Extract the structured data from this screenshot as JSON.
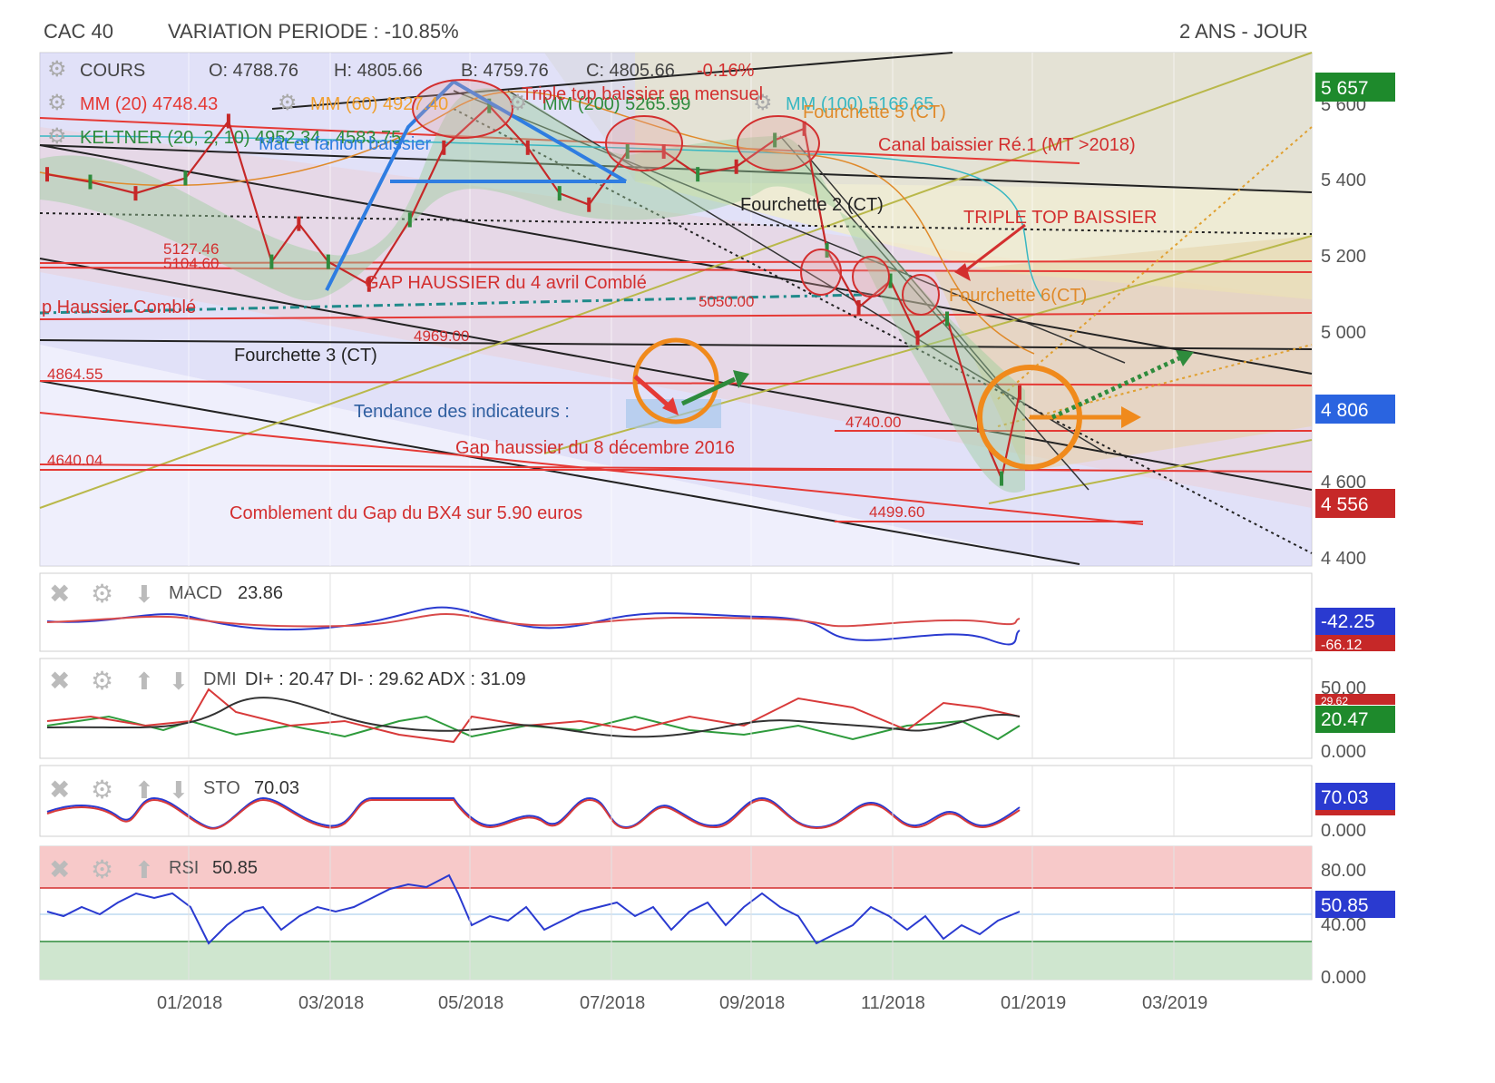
{
  "header": {
    "index": "CAC 40",
    "variation": "VARIATION PERIODE : -10.85%",
    "period": "2 ANS - JOUR"
  },
  "main_panel": {
    "legend": {
      "cours_label": "COURS",
      "o": "O: 4788.76",
      "h": "H: 4805.66",
      "b": "B: 4759.76",
      "c": "C: 4805.66",
      "change": "-0.16%",
      "mm20": "MM (20) 4748.43",
      "mm60": "MM (60) 4927.40",
      "mm200": "MM (200) 5265.99",
      "mm100": "MM (100) 5166.65",
      "keltner": "KELTNER (20, 2, 10) 4952.34 , 4583.75"
    },
    "annotations": {
      "triple_top_mensuel": "Triple top baissier en mensuel",
      "mat_fanion": "Mât et fanion baissier",
      "fourchette5": "Fourchette 5 (CT)",
      "canal_baissier": "Canal baissier Ré.1 (MT >2018)",
      "fourchette2": "Fourchette 2 (CT)",
      "triple_top": "TRIPLE TOP BAISSIER",
      "gap_haussier_avril": "GAP HAUSSIER du 4 avril Comblé",
      "gap_haussier_comble": "p Haussier Comblé",
      "fourchette6": "Fourchette 6(CT)",
      "fourchette3": "Fourchette 3 (CT)",
      "tendance": "Tendance des indicateurs :",
      "gap_decembre": "Gap haussier du 8 décembre 2016",
      "comblement": "Comblement du Gap du BX4 sur 5.90 euros",
      "lvl_5127": "5127.46",
      "lvl_5104": "5104.60",
      "lvl_5050": "5050.00",
      "lvl_4969": "4969.00",
      "lvl_4864": "4864.55",
      "lvl_4740": "4740.00",
      "lvl_4640": "4640.04",
      "lvl_4499": "4499.60"
    },
    "badges": {
      "top": "5 657",
      "current": "4 806",
      "bottom": "4 556"
    }
  },
  "indicators": {
    "macd": {
      "label": "MACD",
      "value": "23.86",
      "badge1": "-42.25",
      "badge2": "-66.12"
    },
    "dmi": {
      "label": "DMI",
      "value": "DI+ : 20.47 DI- : 29.62 ADX : 31.09",
      "badge1": "29.62",
      "badge2": "20.47",
      "tick_top": "50.00",
      "tick_bottom": "0.000"
    },
    "sto": {
      "label": "STO",
      "value": "70.03",
      "badge1": "70.03",
      "tick_bottom": "0.000"
    },
    "rsi": {
      "label": "RSI",
      "value": "50.85",
      "badge1": "50.85",
      "tick80": "80.00",
      "tick40": "40.00",
      "tick0": "0.000"
    }
  },
  "chart_data": {
    "type": "line",
    "title": "CAC 40",
    "x_ticks": [
      "01/2018",
      "03/2018",
      "05/2018",
      "07/2018",
      "09/2018",
      "11/2018",
      "01/2019",
      "03/2019"
    ],
    "y_ticks": [
      "5 600",
      "5 400",
      "5 200",
      "5 000",
      "4 800",
      "4 600",
      "4 400"
    ],
    "ylim": [
      4350,
      5700
    ],
    "series": [
      {
        "name": "COURS",
        "color": "#e53935",
        "x": [
          "2017-11-01",
          "2017-11-20",
          "2017-12-10",
          "2018-01-01",
          "2018-01-20",
          "2018-02-08",
          "2018-02-20",
          "2018-03-05",
          "2018-03-23",
          "2018-04-10",
          "2018-04-25",
          "2018-05-15",
          "2018-06-01",
          "2018-06-15",
          "2018-06-28",
          "2018-07-15",
          "2018-07-31",
          "2018-08-15",
          "2018-09-01",
          "2018-09-18",
          "2018-10-01",
          "2018-10-11",
          "2018-10-25",
          "2018-11-08",
          "2018-11-20",
          "2018-12-03",
          "2018-12-17",
          "2018-12-27",
          "2019-01-04"
        ],
        "values": [
          5380,
          5360,
          5330,
          5370,
          5520,
          5150,
          5250,
          5150,
          5090,
          5260,
          5450,
          5560,
          5450,
          5330,
          5300,
          5440,
          5440,
          5380,
          5400,
          5470,
          5500,
          5180,
          5030,
          5100,
          4950,
          5000,
          4720,
          4580,
          4806
        ]
      },
      {
        "name": "Keltner",
        "color": "#2e7d32",
        "x": [
          "2017-11-01",
          "2018-05-15",
          "2018-10-01",
          "2019-01-04"
        ],
        "values": [
          5400,
          5540,
          5350,
          4950
        ]
      }
    ],
    "grid": true
  }
}
